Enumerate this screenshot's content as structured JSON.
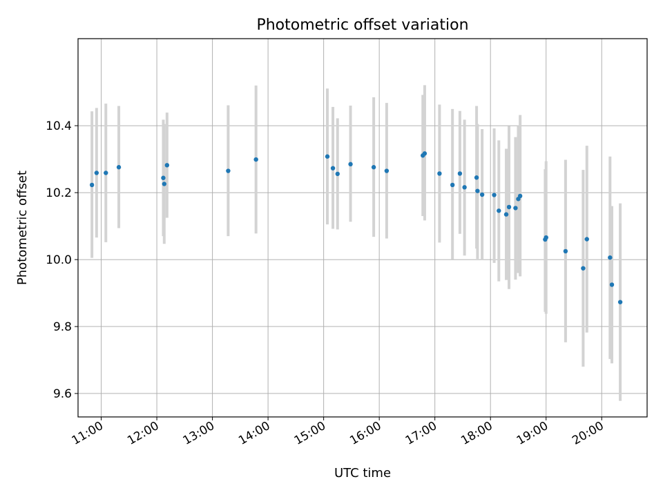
{
  "chart_data": {
    "type": "scatter",
    "title": "Photometric offset variation",
    "xlabel": "UTC time",
    "ylabel": "Photometric offset",
    "x_ticks": [
      "11:00",
      "12:00",
      "13:00",
      "14:00",
      "15:00",
      "16:00",
      "17:00",
      "18:00",
      "19:00",
      "20:00"
    ],
    "y_ticks": [
      "9.6",
      "9.8",
      "10.0",
      "10.2",
      "10.4"
    ],
    "xlim": [
      "10:35",
      "20:49"
    ],
    "ylim": [
      9.53,
      10.66
    ],
    "grid": true,
    "legend": "none",
    "colors": {
      "point": "#1f77b4",
      "errorbar": "#d3d3d3",
      "grid": "#b0b0b0"
    },
    "series": [
      {
        "points": [
          {
            "x": "10:50",
            "y": 10.223,
            "yerr_low": 10.005,
            "yerr_high": 10.443
          },
          {
            "x": "10:55",
            "y": 10.259,
            "yerr_low": 10.066,
            "yerr_high": 10.453
          },
          {
            "x": "11:05",
            "y": 10.259,
            "yerr_low": 10.052,
            "yerr_high": 10.466
          },
          {
            "x": "11:19",
            "y": 10.276,
            "yerr_low": 10.094,
            "yerr_high": 10.459
          },
          {
            "x": "12:07",
            "y": 10.244,
            "yerr_low": 10.07,
            "yerr_high": 10.418
          },
          {
            "x": "12:08",
            "y": 10.226,
            "yerr_low": 10.047,
            "yerr_high": 10.405
          },
          {
            "x": "12:11",
            "y": 10.282,
            "yerr_low": 10.125,
            "yerr_high": 10.439
          },
          {
            "x": "13:17",
            "y": 10.265,
            "yerr_low": 10.07,
            "yerr_high": 10.461
          },
          {
            "x": "13:47",
            "y": 10.299,
            "yerr_low": 10.078,
            "yerr_high": 10.52
          },
          {
            "x": "15:04",
            "y": 10.308,
            "yerr_low": 10.105,
            "yerr_high": 10.511
          },
          {
            "x": "15:10",
            "y": 10.273,
            "yerr_low": 10.092,
            "yerr_high": 10.456
          },
          {
            "x": "15:15",
            "y": 10.256,
            "yerr_low": 10.09,
            "yerr_high": 10.422
          },
          {
            "x": "15:29",
            "y": 10.285,
            "yerr_low": 10.113,
            "yerr_high": 10.46
          },
          {
            "x": "15:54",
            "y": 10.276,
            "yerr_low": 10.068,
            "yerr_high": 10.485
          },
          {
            "x": "16:08",
            "y": 10.265,
            "yerr_low": 10.063,
            "yerr_high": 10.468
          },
          {
            "x": "16:47",
            "y": 10.311,
            "yerr_low": 10.13,
            "yerr_high": 10.492
          },
          {
            "x": "16:49",
            "y": 10.317,
            "yerr_low": 10.117,
            "yerr_high": 10.521
          },
          {
            "x": "17:05",
            "y": 10.257,
            "yerr_low": 10.051,
            "yerr_high": 10.463
          },
          {
            "x": "17:19",
            "y": 10.223,
            "yerr_low": 10.001,
            "yerr_high": 10.45
          },
          {
            "x": "17:27",
            "y": 10.257,
            "yerr_low": 10.077,
            "yerr_high": 10.444
          },
          {
            "x": "17:32",
            "y": 10.216,
            "yerr_low": 10.012,
            "yerr_high": 10.418
          },
          {
            "x": "17:45",
            "y": 10.245,
            "yerr_low": 10.033,
            "yerr_high": 10.459
          },
          {
            "x": "17:46",
            "y": 10.205,
            "yerr_low": 10.002,
            "yerr_high": 10.405
          },
          {
            "x": "17:51",
            "y": 10.194,
            "yerr_low": 9.998,
            "yerr_high": 10.39
          },
          {
            "x": "18:04",
            "y": 10.193,
            "yerr_low": 9.99,
            "yerr_high": 10.392
          },
          {
            "x": "18:09",
            "y": 10.146,
            "yerr_low": 9.935,
            "yerr_high": 10.356
          },
          {
            "x": "18:17",
            "y": 10.135,
            "yerr_low": 9.939,
            "yerr_high": 10.331
          },
          {
            "x": "18:20",
            "y": 10.157,
            "yerr_low": 9.912,
            "yerr_high": 10.399
          },
          {
            "x": "18:27",
            "y": 10.154,
            "yerr_low": 9.94,
            "yerr_high": 10.366
          },
          {
            "x": "18:30",
            "y": 10.181,
            "yerr_low": 9.96,
            "yerr_high": 10.4
          },
          {
            "x": "18:32",
            "y": 10.19,
            "yerr_low": 9.95,
            "yerr_high": 10.432
          },
          {
            "x": "18:59",
            "y": 10.06,
            "yerr_low": 9.844,
            "yerr_high": 10.27
          },
          {
            "x": "19:00",
            "y": 10.066,
            "yerr_low": 9.838,
            "yerr_high": 10.294
          },
          {
            "x": "19:21",
            "y": 10.025,
            "yerr_low": 9.753,
            "yerr_high": 10.298
          },
          {
            "x": "19:40",
            "y": 9.974,
            "yerr_low": 9.68,
            "yerr_high": 10.268
          },
          {
            "x": "19:44",
            "y": 10.061,
            "yerr_low": 9.782,
            "yerr_high": 10.34
          },
          {
            "x": "20:09",
            "y": 10.006,
            "yerr_low": 9.703,
            "yerr_high": 10.308
          },
          {
            "x": "20:11",
            "y": 9.925,
            "yerr_low": 9.69,
            "yerr_high": 10.16
          },
          {
            "x": "20:20",
            "y": 9.873,
            "yerr_low": 9.578,
            "yerr_high": 10.168
          }
        ]
      }
    ]
  }
}
